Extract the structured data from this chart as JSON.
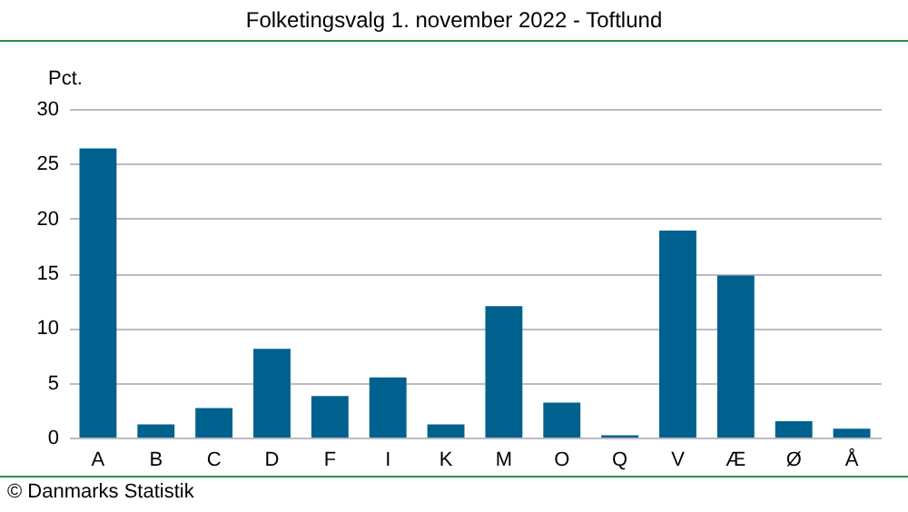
{
  "chart_data": {
    "type": "bar",
    "title": "Folketingsvalg 1. november 2022 - Toftlund",
    "ylabel": "Pct.",
    "categories": [
      "A",
      "B",
      "C",
      "D",
      "F",
      "I",
      "K",
      "M",
      "O",
      "Q",
      "V",
      "Æ",
      "Ø",
      "Å"
    ],
    "values": [
      26.4,
      1.2,
      2.7,
      8.1,
      3.8,
      5.5,
      1.2,
      12.0,
      3.2,
      0.2,
      18.9,
      14.8,
      1.5,
      0.8
    ],
    "color": "#00618f",
    "ylim": [
      0,
      30
    ],
    "yticks": [
      0,
      5,
      10,
      15,
      20,
      25,
      30
    ],
    "grid": "y",
    "annotations": [
      "© Danmarks Statistik"
    ]
  }
}
